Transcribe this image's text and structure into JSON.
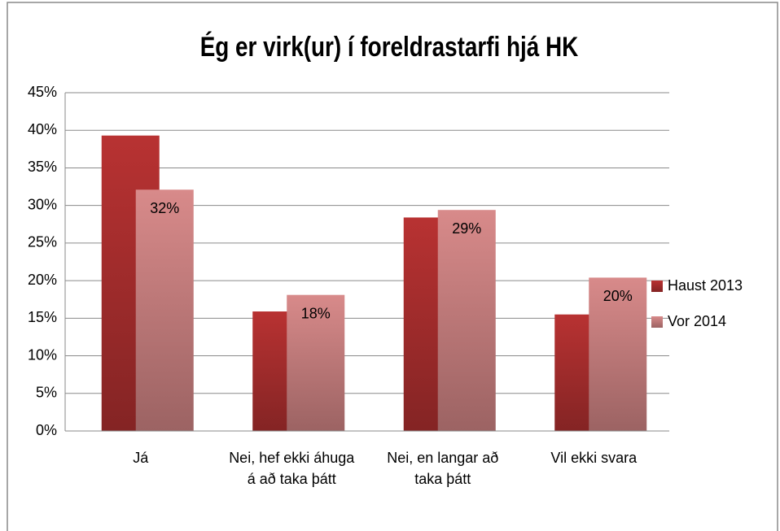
{
  "chart_data": {
    "type": "bar",
    "title": "Ég er virk(ur) í foreldrastarfi hjá HK",
    "categories": [
      "Já",
      "Nei, hef ekki áhuga á að taka þátt",
      "Nei, en langar að taka þátt",
      "Vil ekki svara"
    ],
    "series": [
      {
        "name": "Haust 2013",
        "color": "#b83232",
        "values": [
          39.3,
          15.9,
          28.4,
          15.5
        ]
      },
      {
        "name": "Vor 2014",
        "color": "#d88a8a",
        "values": [
          32.1,
          18.1,
          29.4,
          20.4
        ],
        "value_labels": [
          "32%",
          "18%",
          "29%",
          "20%"
        ]
      }
    ],
    "ylim": [
      0,
      45
    ],
    "yticks": [
      {
        "value": 0,
        "label": "0%"
      },
      {
        "value": 5,
        "label": "5%"
      },
      {
        "value": 10,
        "label": "10%"
      },
      {
        "value": 15,
        "label": "15%"
      },
      {
        "value": 20,
        "label": "20%"
      },
      {
        "value": 25,
        "label": "25%"
      },
      {
        "value": 30,
        "label": "30%"
      },
      {
        "value": 35,
        "label": "35%"
      },
      {
        "value": 40,
        "label": "40%"
      },
      {
        "value": 45,
        "label": "45%"
      }
    ],
    "grid": true,
    "legend": "right"
  }
}
